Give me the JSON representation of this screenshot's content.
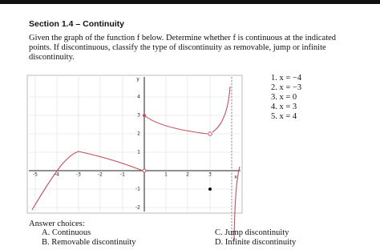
{
  "header": {
    "title": "Section 1.4 – Continuity"
  },
  "prompt": "Given the graph of the function f below. Determine whether f is continuous at the indicated points. If discontinuous, classify the type of discontinuity as removable, jump or infinite discontinuity.",
  "graph": {
    "y_label": "y",
    "x_label": "x",
    "x_ticks": [
      "-5",
      "-4",
      "-3",
      "-2",
      "-1",
      "1",
      "2",
      "3"
    ],
    "y_ticks": [
      "4",
      "3",
      "2",
      "1",
      "-1",
      "-2"
    ]
  },
  "points": [
    "1.  x = −4",
    "2.  x = −3",
    "3.  x = 0",
    "4.  x = 3",
    "5.  x = 4"
  ],
  "answer_heading": "Answer choices:",
  "answer_choices": [
    "A.  Continuous",
    "B.  Removable discontinuity",
    "C.  Jump discontinuity",
    "D.  Infinite discontinuity"
  ]
}
